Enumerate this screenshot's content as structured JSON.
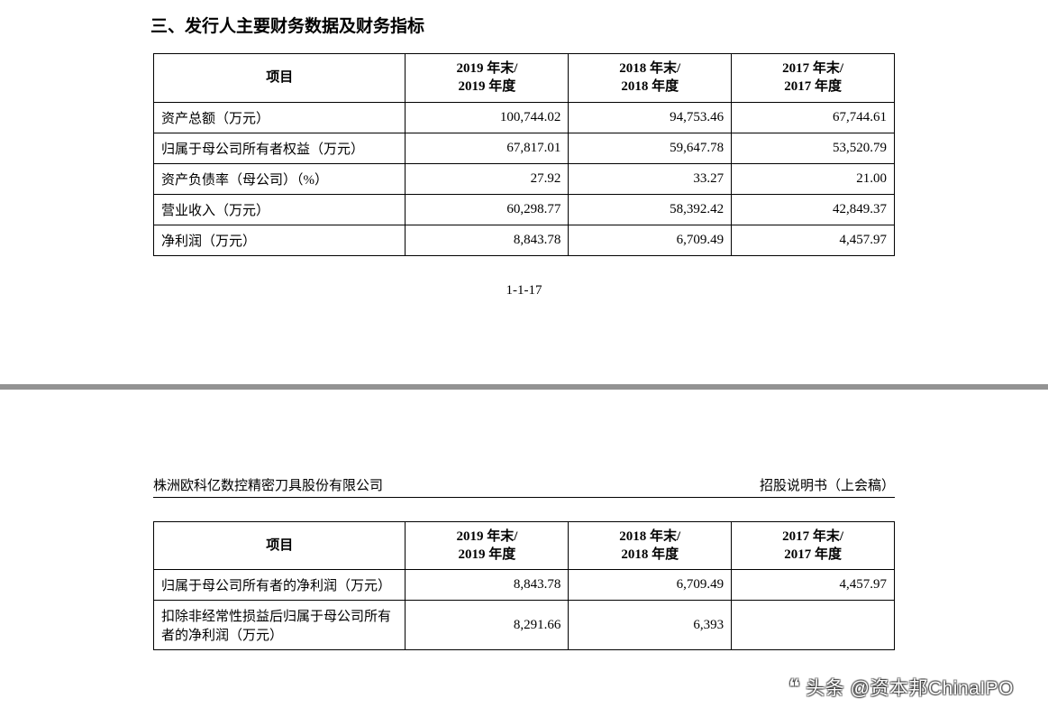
{
  "section_title": "三、发行人主要财务数据及财务指标",
  "page_number": "1-1-17",
  "company_name": "株洲欧科亿数控精密刀具股份有限公司",
  "doc_label": "招股说明书（上会稿）",
  "watermark": "头条 @资本邦ChinaIPO",
  "table1": {
    "headers": [
      "项目",
      "2019 年末/\n2019 年度",
      "2018 年末/\n2018 年度",
      "2017 年末/\n2017 年度"
    ],
    "rows": [
      [
        "资产总额（万元）",
        "100,744.02",
        "94,753.46",
        "67,744.61"
      ],
      [
        "归属于母公司所有者权益（万元）",
        "67,817.01",
        "59,647.78",
        "53,520.79"
      ],
      [
        "资产负债率（母公司）（%）",
        "27.92",
        "33.27",
        "21.00"
      ],
      [
        "营业收入（万元）",
        "60,298.77",
        "58,392.42",
        "42,849.37"
      ],
      [
        "净利润（万元）",
        "8,843.78",
        "6,709.49",
        "4,457.97"
      ]
    ]
  },
  "table2": {
    "headers": [
      "项目",
      "2019 年末/\n2019 年度",
      "2018 年末/\n2018 年度",
      "2017 年末/\n2017 年度"
    ],
    "rows": [
      [
        "归属于母公司所有者的净利润（万元）",
        "8,843.78",
        "6,709.49",
        "4,457.97"
      ],
      [
        "扣除非经常性损益后归属于母公司所有者的净利润（万元）",
        "8,291.66",
        "6,393",
        ""
      ]
    ]
  },
  "colors": {
    "divider": "#939393",
    "text": "#000000",
    "background": "#ffffff"
  }
}
